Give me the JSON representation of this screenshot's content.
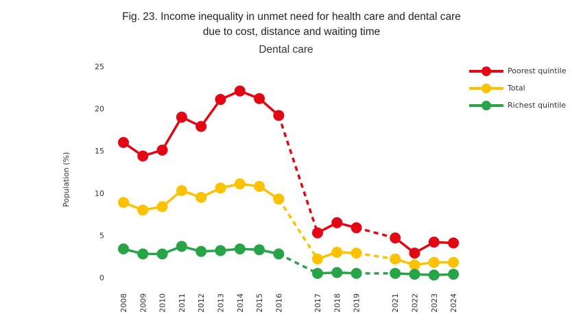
{
  "figure": {
    "title_line1": "Fig. 23. Income inequality in unmet need for health care and dental care",
    "title_line2": "due to cost, distance and waiting time"
  },
  "chart_data": {
    "type": "line",
    "title": "Dental care",
    "xlabel": "",
    "ylabel": "Population (%)",
    "ylim": [
      0,
      25
    ],
    "yticks": [
      0,
      5,
      10,
      15,
      20,
      25
    ],
    "grid": false,
    "legend_position": "top-right",
    "x": [
      "2008",
      "2009",
      "2010",
      "2011",
      "2012",
      "2013",
      "2014",
      "2015",
      "2016",
      "2017",
      "2018",
      "2019",
      "2021",
      "2022",
      "2023",
      "2024"
    ],
    "x_slots": [
      0,
      1,
      2,
      3,
      4,
      5,
      6,
      7,
      8,
      10,
      11,
      12,
      14,
      15,
      16,
      17
    ],
    "dashed_segments_after": [
      "2016",
      "2019"
    ],
    "series": [
      {
        "name": "Poorest quintile",
        "color": "#e30613",
        "values": [
          16.0,
          14.4,
          15.1,
          19.0,
          17.9,
          21.1,
          22.1,
          21.2,
          19.2,
          5.3,
          6.5,
          5.9,
          4.7,
          2.9,
          4.2,
          4.1
        ]
      },
      {
        "name": "Total",
        "color": "#fcc200",
        "values": [
          8.9,
          8.0,
          8.4,
          10.3,
          9.5,
          10.6,
          11.1,
          10.8,
          9.3,
          2.2,
          3.0,
          2.9,
          2.2,
          1.5,
          1.8,
          1.8
        ]
      },
      {
        "name": "Richest quintile",
        "color": "#27a348",
        "values": [
          3.4,
          2.8,
          2.8,
          3.7,
          3.1,
          3.2,
          3.4,
          3.3,
          2.8,
          0.5,
          0.6,
          0.5,
          0.5,
          0.4,
          0.3,
          0.4
        ]
      }
    ]
  }
}
